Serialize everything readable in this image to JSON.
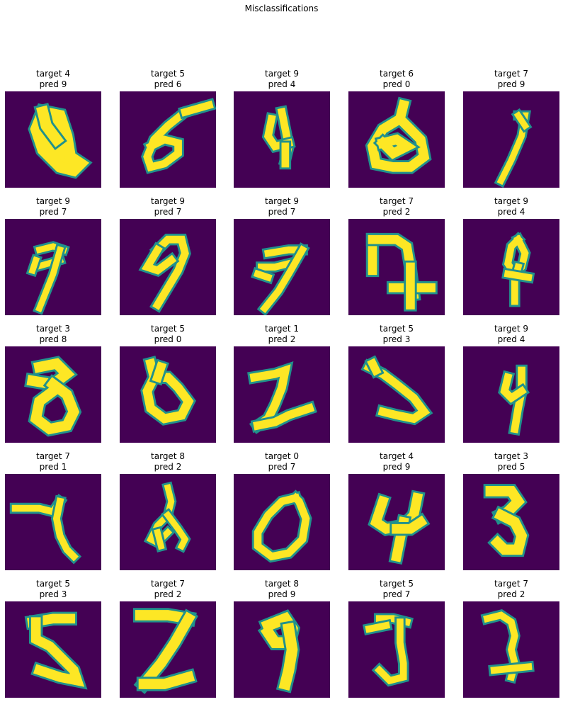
{
  "figure": {
    "title": "Misclassifications"
  },
  "chart_data": {
    "type": "heatmap",
    "title": "Misclassifications",
    "colormap": "viridis",
    "colors": {
      "background": "#440154",
      "foreground": "#fde725",
      "mid": "#21918c",
      "mid_light": "#5ec962"
    },
    "panels": [
      {
        "target": 4,
        "pred": 9,
        "label": "target 4",
        "pred_label": "pred 9"
      },
      {
        "target": 5,
        "pred": 6,
        "label": "target 5",
        "pred_label": "pred 6"
      },
      {
        "target": 9,
        "pred": 4,
        "label": "target 9",
        "pred_label": "pred 4"
      },
      {
        "target": 6,
        "pred": 0,
        "label": "target 6",
        "pred_label": "pred 0"
      },
      {
        "target": 7,
        "pred": 9,
        "label": "target 7",
        "pred_label": "pred 9"
      },
      {
        "target": 9,
        "pred": 7,
        "label": "target 9",
        "pred_label": "pred 7"
      },
      {
        "target": 9,
        "pred": 7,
        "label": "target 9",
        "pred_label": "pred 7"
      },
      {
        "target": 9,
        "pred": 7,
        "label": "target 9",
        "pred_label": "pred 7"
      },
      {
        "target": 7,
        "pred": 2,
        "label": "target 7",
        "pred_label": "pred 2"
      },
      {
        "target": 9,
        "pred": 4,
        "label": "target 9",
        "pred_label": "pred 4"
      },
      {
        "target": 3,
        "pred": 8,
        "label": "target 3",
        "pred_label": "pred 8"
      },
      {
        "target": 5,
        "pred": 0,
        "label": "target 5",
        "pred_label": "pred 0"
      },
      {
        "target": 1,
        "pred": 2,
        "label": "target 1",
        "pred_label": "pred 2"
      },
      {
        "target": 5,
        "pred": 3,
        "label": "target 5",
        "pred_label": "pred 3"
      },
      {
        "target": 9,
        "pred": 4,
        "label": "target 9",
        "pred_label": "pred 4"
      },
      {
        "target": 7,
        "pred": 1,
        "label": "target 7",
        "pred_label": "pred 1"
      },
      {
        "target": 8,
        "pred": 2,
        "label": "target 8",
        "pred_label": "pred 2"
      },
      {
        "target": 0,
        "pred": 7,
        "label": "target 0",
        "pred_label": "pred 7"
      },
      {
        "target": 4,
        "pred": 9,
        "label": "target 4",
        "pred_label": "pred 9"
      },
      {
        "target": 3,
        "pred": 5,
        "label": "target 3",
        "pred_label": "pred 5"
      },
      {
        "target": 5,
        "pred": 3,
        "label": "target 5",
        "pred_label": "pred 3"
      },
      {
        "target": 7,
        "pred": 2,
        "label": "target 7",
        "pred_label": "pred 2"
      },
      {
        "target": 8,
        "pred": 9,
        "label": "target 8",
        "pred_label": "pred 9"
      },
      {
        "target": 5,
        "pred": 7,
        "label": "target 5",
        "pred_label": "pred 7"
      },
      {
        "target": 7,
        "pred": 2,
        "label": "target 7",
        "pred_label": "pred 2"
      }
    ]
  }
}
